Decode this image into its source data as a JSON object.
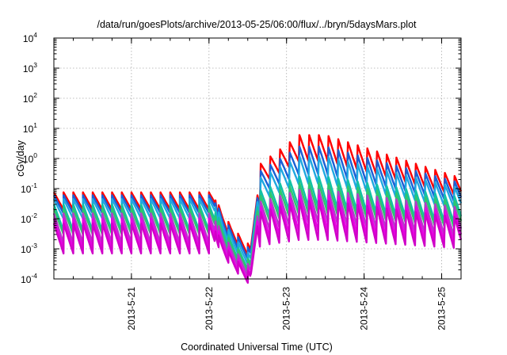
{
  "chart_data": {
    "type": "line",
    "title": "/data/run/goesPlots/archive/2013-05-25/06:00/flux/../bryn/5daysMars.plot",
    "xlabel": "Coordinated Universal Time (UTC)",
    "ylabel": "cGy/day",
    "yscale": "log",
    "ylim": [
      0.0001,
      10000
    ],
    "y_ticks": [
      {
        "base": "10",
        "exp": "-4"
      },
      {
        "base": "10",
        "exp": "-3"
      },
      {
        "base": "10",
        "exp": "-2"
      },
      {
        "base": "10",
        "exp": "-1"
      },
      {
        "base": "10",
        "exp": "0"
      },
      {
        "base": "10",
        "exp": "1"
      },
      {
        "base": "10",
        "exp": "2"
      },
      {
        "base": "10",
        "exp": "3"
      },
      {
        "base": "10",
        "exp": "4"
      }
    ],
    "xlim": [
      "2013-05-20 00:00",
      "2013-05-25 06:00"
    ],
    "x_ticks": [
      "2013-5-21",
      "2013-5-22",
      "2013-5-23",
      "2013-5-24",
      "2013-5-25"
    ],
    "grid": true,
    "sawtooth_period_hours": 3,
    "event_hours": {
      "dip_start": 50,
      "dip_min": 61,
      "recovery": 63,
      "onset": 64,
      "flat_from": 84
    },
    "series": [
      {
        "color": "#ff0000",
        "quiet_peak": 0.075,
        "quiet_trough": 0.02,
        "storm_peak": 6.0,
        "storm_trough": 0.7,
        "dip": 0.0012
      },
      {
        "color": "#1a5fd6",
        "quiet_peak": 0.06,
        "quiet_trough": 0.015,
        "storm_peak": 2.5,
        "storm_trough": 0.25,
        "dip": 0.0009
      },
      {
        "color": "#20a8e0",
        "quiet_peak": 0.045,
        "quiet_trough": 0.01,
        "storm_peak": 1.2,
        "storm_trough": 0.12,
        "dip": 0.0006
      },
      {
        "color": "#12c2a6",
        "quiet_peak": 0.03,
        "quiet_trough": 0.004,
        "storm_peak": 0.25,
        "storm_trough": 0.02,
        "dip": 0.0004
      },
      {
        "color": "#2fc56e",
        "quiet_peak": 0.022,
        "quiet_trough": 0.003,
        "storm_peak": 0.15,
        "storm_trough": 0.012,
        "dip": 0.00035
      },
      {
        "color": "#b43cc8",
        "quiet_peak": 0.015,
        "quiet_trough": 0.0015,
        "storm_peak": 0.09,
        "storm_trough": 0.006,
        "dip": 0.00025
      },
      {
        "color": "#ea00e6",
        "quiet_peak": 0.01,
        "quiet_trough": 0.001,
        "storm_peak": 0.06,
        "storm_trough": 0.003,
        "dip": 0.00018
      },
      {
        "color": "#d000c8",
        "quiet_peak": 0.007,
        "quiet_trough": 0.0007,
        "storm_peak": 0.04,
        "storm_trough": 0.0015,
        "dip": 0.00015
      }
    ]
  }
}
